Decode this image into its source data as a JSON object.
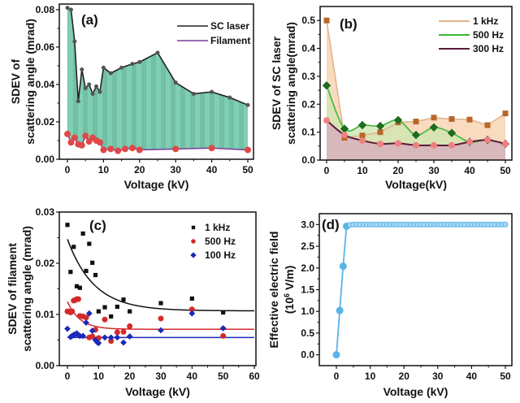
{
  "chart_data": [
    {
      "id": "a",
      "type": "area",
      "panel_label": "(a)",
      "title": "",
      "xlabel": "Voltage (kV)",
      "ylabel_lines": [
        "SDEV of",
        "scattering angle (mrad)"
      ],
      "xlim": [
        -2,
        52
      ],
      "ylim": [
        0,
        0.083
      ],
      "xticks": [
        0,
        10,
        20,
        30,
        40,
        50
      ],
      "yticks": [
        0.0,
        0.02,
        0.04,
        0.06,
        0.08
      ],
      "ytick_labels": [
        "0.00",
        "0.02",
        "0.04",
        "0.06",
        "0.08"
      ],
      "legend_position": "top-right",
      "series": [
        {
          "name": "SC laser",
          "color": "#222222",
          "fill": "#7fcfb2",
          "marker": "circle",
          "marker_color": "#555555",
          "x": [
            0,
            1,
            2,
            3,
            4,
            5,
            6,
            7,
            8,
            9,
            10,
            12,
            15,
            18,
            20,
            25,
            30,
            35,
            40,
            45,
            50
          ],
          "y": [
            0.081,
            0.08,
            0.063,
            0.031,
            0.048,
            0.038,
            0.04,
            0.035,
            0.039,
            0.036,
            0.049,
            0.046,
            0.049,
            0.051,
            0.052,
            0.057,
            0.041,
            0.035,
            0.036,
            0.033,
            0.029
          ]
        },
        {
          "name": "Filament",
          "color": "#7a3a9a",
          "marker": "circle",
          "marker_color": "#e04848",
          "x": [
            0,
            1,
            2,
            3,
            4,
            5,
            6,
            7,
            8,
            9,
            10,
            12,
            14,
            16,
            18,
            20,
            30,
            40,
            50
          ],
          "y": [
            0.0135,
            0.009,
            0.0115,
            0.008,
            0.0075,
            0.0125,
            0.0095,
            0.0115,
            0.01,
            0.009,
            0.005,
            0.0055,
            0.0045,
            0.0055,
            0.006,
            0.005,
            0.0055,
            0.006,
            0.005
          ]
        }
      ]
    },
    {
      "id": "b",
      "type": "area",
      "panel_label": "(b)",
      "title": "",
      "xlabel": "Voltage(kV)",
      "ylabel_lines": [
        "SDEV of SC laser",
        "scattering angle(mrad)"
      ],
      "xlim": [
        -2,
        52
      ],
      "ylim": [
        0,
        0.55
      ],
      "xticks": [
        0,
        10,
        20,
        30,
        40,
        50
      ],
      "yticks": [
        0.0,
        0.1,
        0.2,
        0.3,
        0.4,
        0.5
      ],
      "ytick_labels": [
        "0.0",
        "0.1",
        "0.2",
        "0.3",
        "0.4",
        "0.5"
      ],
      "legend_position": "top-right",
      "series": [
        {
          "name": "1 kHz",
          "color": "#e2b58a",
          "fill": "#f7d2b0",
          "marker": "square",
          "marker_color": "#b8672a",
          "x": [
            0,
            5,
            10,
            15,
            20,
            25,
            30,
            35,
            40,
            45,
            50
          ],
          "y": [
            0.5,
            0.08,
            0.088,
            0.1,
            0.135,
            0.138,
            0.152,
            0.147,
            0.145,
            0.125,
            0.167
          ]
        },
        {
          "name": "500 Hz",
          "color": "#38b838",
          "fill": "#cfe6b0",
          "marker": "diamond",
          "marker_color": "#1e6a1e",
          "x": [
            0,
            5,
            10,
            15,
            20,
            25,
            30,
            35,
            40,
            45,
            50
          ],
          "y": [
            0.267,
            0.112,
            0.125,
            0.122,
            0.143,
            0.09,
            0.117,
            0.097,
            0.065,
            0.072,
            0.058
          ]
        },
        {
          "name": "300 Hz",
          "color": "#5a1a3a",
          "fill": "#d8b0bb",
          "marker": "circle",
          "marker_color": "#f08080",
          "x": [
            0,
            5,
            10,
            15,
            20,
            25,
            30,
            35,
            40,
            45,
            50
          ],
          "y": [
            0.142,
            0.09,
            0.07,
            0.058,
            0.06,
            0.053,
            0.053,
            0.053,
            0.065,
            0.072,
            0.058
          ]
        }
      ]
    },
    {
      "id": "c",
      "type": "scatter",
      "panel_label": "(c)",
      "title": "",
      "xlabel": "Voltage (kV)",
      "ylabel_lines": [
        "SDEV of filament",
        "scattering angle (mrad)"
      ],
      "xlim": [
        -2.5,
        60
      ],
      "ylim": [
        0,
        0.03
      ],
      "xticks": [
        0,
        10,
        20,
        30,
        40,
        50,
        60
      ],
      "yticks": [
        0.0,
        0.01,
        0.02,
        0.03
      ],
      "ytick_labels": [
        "0.00",
        "0.01",
        "0.02",
        "0.03"
      ],
      "legend_position": "top-right",
      "series": [
        {
          "name": "1 kHz",
          "marker": "square",
          "color": "#111111",
          "x": [
            0,
            1,
            2,
            3,
            4,
            5,
            6,
            7,
            8,
            9,
            10,
            12,
            14,
            16,
            18,
            20,
            30,
            40,
            50
          ],
          "y": [
            0.0275,
            0.0183,
            0.0232,
            0.0155,
            0.0152,
            0.0258,
            0.0185,
            0.0238,
            0.0201,
            0.0177,
            0.0106,
            0.0114,
            0.0096,
            0.0115,
            0.0129,
            0.0106,
            0.0122,
            0.0131,
            0.0104
          ],
          "fit": {
            "y_start": 0.0247,
            "y_end": 0.0107,
            "decay": 8.5
          }
        },
        {
          "name": "500 Hz",
          "marker": "circle",
          "color": "#d42a2a",
          "x": [
            0,
            0.5,
            1,
            1.5,
            2,
            2.5,
            3,
            3.5,
            4,
            5,
            6,
            7,
            8,
            9,
            10,
            12,
            14,
            16,
            18,
            20,
            30,
            40,
            50
          ],
          "y": [
            0.0106,
            0.0106,
            0.0104,
            0.0106,
            0.0127,
            0.0128,
            0.013,
            0.013,
            0.0097,
            0.0096,
            0.0094,
            0.0055,
            0.0057,
            0.007,
            0.0054,
            0.009,
            0.0048,
            0.0065,
            0.0066,
            0.0077,
            0.0092,
            0.011,
            0.0058
          ],
          "fit": {
            "y_start": 0.0125,
            "y_end": 0.0071,
            "decay": 4.0
          }
        },
        {
          "name": "100 Hz",
          "marker": "diamond",
          "color": "#1a2ab8",
          "x": [
            0,
            1,
            1.5,
            2,
            2.5,
            3,
            3.5,
            4,
            5,
            6,
            7,
            8,
            9,
            9.5,
            10,
            12,
            14,
            16,
            18,
            20,
            30,
            40,
            50
          ],
          "y": [
            0.0072,
            0.0056,
            0.0058,
            0.006,
            0.0061,
            0.0063,
            0.006,
            0.0058,
            0.0058,
            0.0084,
            0.0102,
            0.0068,
            0.005,
            0.0046,
            0.0044,
            0.0055,
            0.0055,
            0.0055,
            0.0045,
            0.0057,
            0.0069,
            0.0102,
            0.0073
          ],
          "fit": {
            "y_start": 0.0055,
            "y_end": 0.0055,
            "decay": 1
          }
        }
      ]
    },
    {
      "id": "d",
      "type": "line",
      "panel_label": "(d)",
      "title": "",
      "xlabel": "Voltage (kV)",
      "ylabel_lines": [
        "Effective electric field",
        "(10^6 V/m)"
      ],
      "xlim": [
        -5,
        52
      ],
      "ylim": [
        -0.25,
        3.25
      ],
      "xticks": [
        0,
        10,
        20,
        30,
        40,
        50
      ],
      "yticks": [
        0.0,
        0.5,
        1.0,
        1.5,
        2.0,
        2.5,
        3.0
      ],
      "ytick_labels": [
        "0.0",
        "0.5",
        "1.0",
        "1.5",
        "2.0",
        "2.5",
        "3.0"
      ],
      "legend_position": "none",
      "series": [
        {
          "name": "Effective electric field",
          "color": "#5ab4e6",
          "marker": "circle",
          "x": [
            0,
            1,
            2,
            3,
            4,
            5,
            6,
            7,
            8,
            9,
            10,
            11,
            12,
            13,
            14,
            15,
            16,
            17,
            18,
            19,
            20,
            21,
            22,
            23,
            24,
            25,
            26,
            27,
            28,
            29,
            30,
            31,
            32,
            33,
            34,
            35,
            36,
            37,
            38,
            39,
            40,
            41,
            42,
            43,
            44,
            45,
            46,
            47,
            48,
            49,
            50
          ],
          "y": [
            0.0,
            1.02,
            2.04,
            2.96,
            2.99,
            3.0,
            3.0,
            3.0,
            3.0,
            3.0,
            3.0,
            3.0,
            3.0,
            3.0,
            3.0,
            3.0,
            3.0,
            3.0,
            3.0,
            3.0,
            3.0,
            3.0,
            3.0,
            3.0,
            3.0,
            3.0,
            3.0,
            3.0,
            3.0,
            3.0,
            3.0,
            3.0,
            3.0,
            3.0,
            3.0,
            3.0,
            3.0,
            3.0,
            3.0,
            3.0,
            3.0,
            3.0,
            3.0,
            3.0,
            3.0,
            3.0,
            3.0,
            3.0,
            3.0,
            3.0,
            3.0
          ]
        }
      ]
    }
  ]
}
